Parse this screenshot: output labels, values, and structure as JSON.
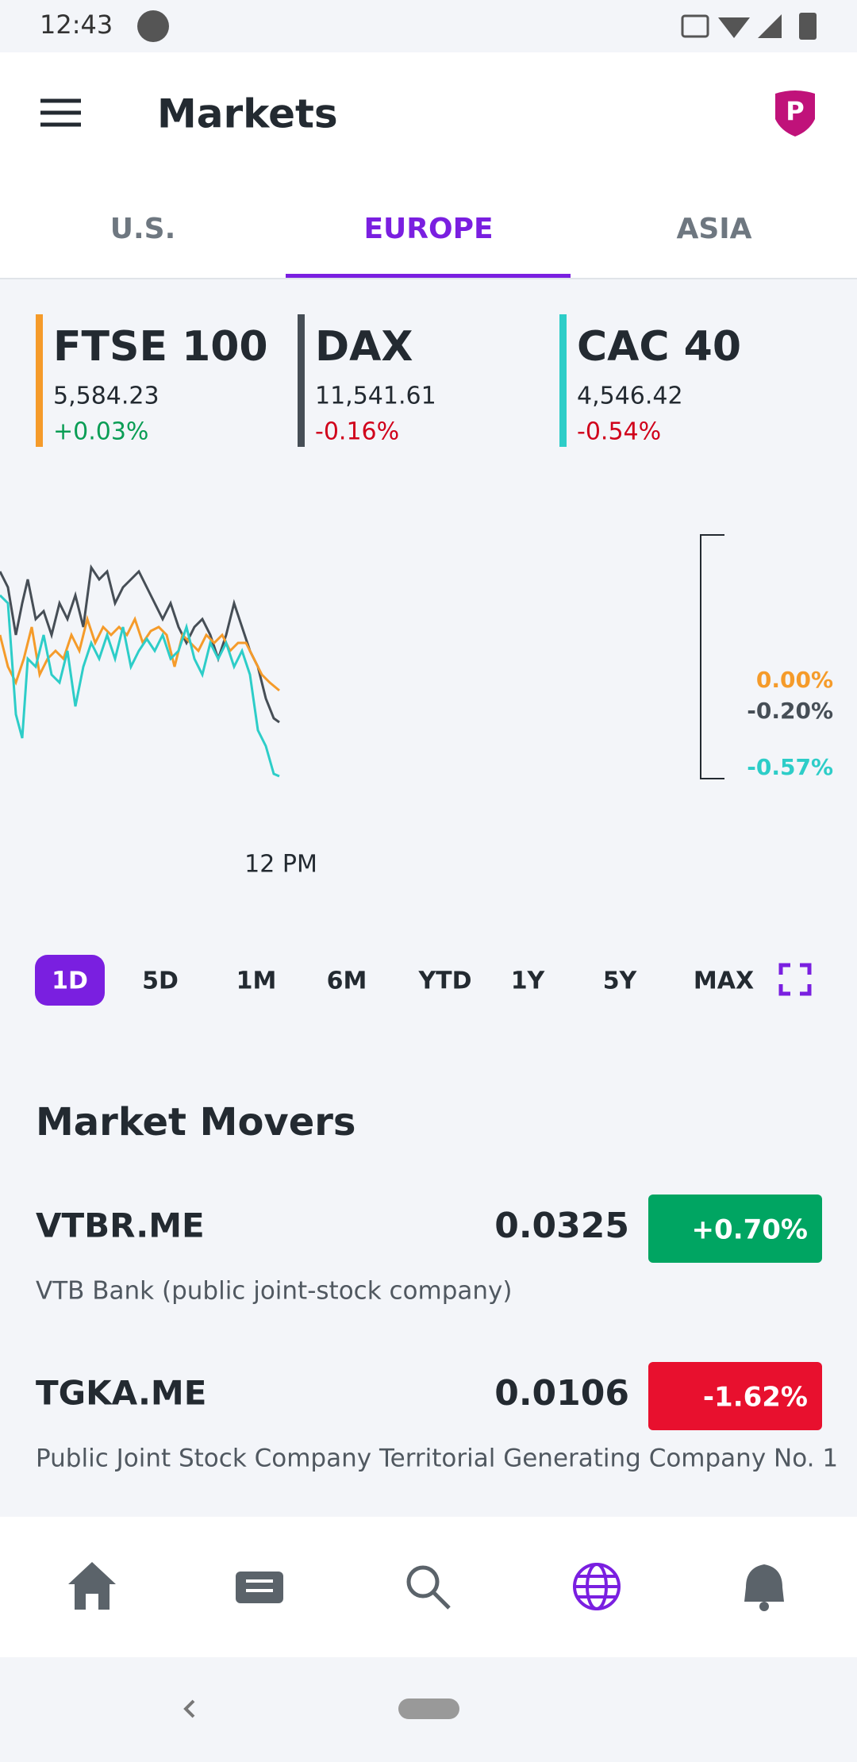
{
  "status_bar": {
    "time": "12:43"
  },
  "header": {
    "title": "Markets"
  },
  "tabs": [
    "U.S.",
    "EUROPE",
    "ASIA"
  ],
  "selected_tab": 1,
  "indices": [
    {
      "name": "FTSE 100",
      "value": "5,584.23",
      "change": "+0.03%",
      "color": "#f59b2a"
    },
    {
      "name": "DAX",
      "value": "11,541.61",
      "change": "-0.16%",
      "color": "#464e56"
    },
    {
      "name": "CAC 40",
      "value": "4,546.42",
      "change": "-0.54%",
      "color": "#2dcdc8"
    }
  ],
  "chart": {
    "end_labels": [
      "0.00%",
      "-0.20%",
      "-0.57%"
    ],
    "time_label": "12 PM"
  },
  "ranges": [
    "1D",
    "5D",
    "1M",
    "6M",
    "YTD",
    "1Y",
    "5Y",
    "MAX"
  ],
  "selected_range": 0,
  "market_movers": {
    "title": "Market Movers",
    "items": [
      {
        "symbol": "VTBR.ME",
        "price": "0.0325",
        "change": "+0.70%",
        "name": "VTB Bank (public joint-stock company)"
      },
      {
        "symbol": "TGKA.ME",
        "price": "0.0106",
        "change": "-1.62%",
        "name": "Public Joint Stock Company Territorial Generating Company No. 1"
      }
    ]
  }
}
